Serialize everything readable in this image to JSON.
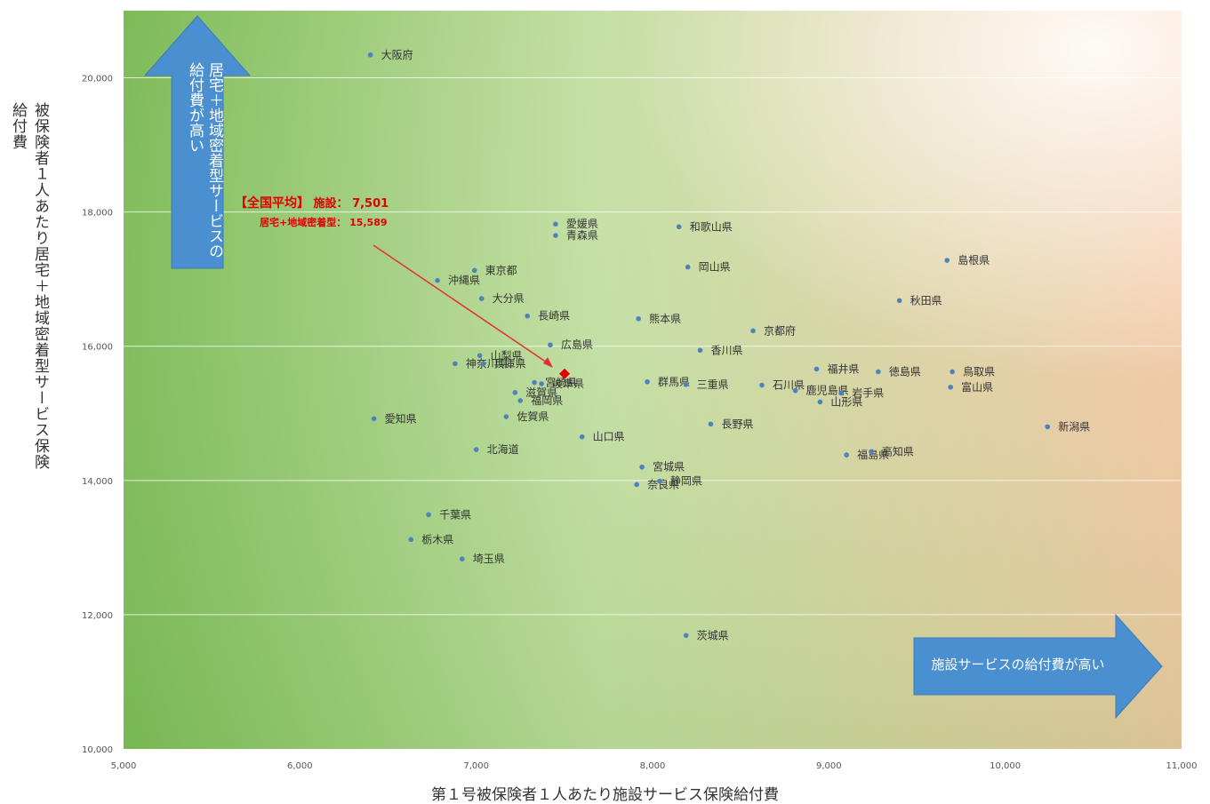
{
  "chart_data": {
    "type": "scatter",
    "title": "",
    "xlabel": "第１号被保険者１人あたり施設サービス保険給付費",
    "ylabel": "被保険者１人あたり居宅＋地域密着型サービス保険給付費",
    "xlim": [
      5000,
      11000
    ],
    "ylim": [
      10000,
      21000
    ],
    "xticks": [
      5000,
      6000,
      7000,
      8000,
      9000,
      10000,
      11000
    ],
    "xtick_labels": [
      "5,000",
      "6,000",
      "7,000",
      "8,000",
      "9,000",
      "10,000",
      "11,000"
    ],
    "yticks": [
      10000,
      12000,
      14000,
      16000,
      18000,
      20000
    ],
    "ytick_labels": [
      "10,000",
      "12,000",
      "14,000",
      "16,000",
      "18,000",
      "20,000"
    ],
    "grid": "horizontal",
    "points": [
      {
        "label": "大阪府",
        "x": 6400,
        "y": 20340
      },
      {
        "label": "愛媛県",
        "x": 7450,
        "y": 17820
      },
      {
        "label": "青森県",
        "x": 7450,
        "y": 17650
      },
      {
        "label": "和歌山県",
        "x": 8150,
        "y": 17780
      },
      {
        "label": "沖縄県",
        "x": 6780,
        "y": 16980
      },
      {
        "label": "東京都",
        "x": 6990,
        "y": 17130
      },
      {
        "label": "岡山県",
        "x": 8200,
        "y": 17180
      },
      {
        "label": "島根県",
        "x": 9670,
        "y": 17280
      },
      {
        "label": "大分県",
        "x": 7030,
        "y": 16710
      },
      {
        "label": "秋田県",
        "x": 9400,
        "y": 16680
      },
      {
        "label": "長崎県",
        "x": 7290,
        "y": 16450
      },
      {
        "label": "熊本県",
        "x": 7920,
        "y": 16410
      },
      {
        "label": "京都府",
        "x": 8570,
        "y": 16230
      },
      {
        "label": "山梨県",
        "x": 7020,
        "y": 15860
      },
      {
        "label": "広島県",
        "x": 7420,
        "y": 16020
      },
      {
        "label": "香川県",
        "x": 8270,
        "y": 15940
      },
      {
        "label": "神奈川県",
        "x": 6880,
        "y": 15740
      },
      {
        "label": "兵庫県",
        "x": 7040,
        "y": 15740
      },
      {
        "label": "群馬県",
        "x": 7970,
        "y": 15470
      },
      {
        "label": "三重県",
        "x": 8190,
        "y": 15430
      },
      {
        "label": "福井県",
        "x": 8930,
        "y": 15660
      },
      {
        "label": "徳島県",
        "x": 9280,
        "y": 15620
      },
      {
        "label": "鳥取県",
        "x": 9700,
        "y": 15620
      },
      {
        "label": "宮崎県",
        "x": 7330,
        "y": 15460
      },
      {
        "label": "岐阜県",
        "x": 7370,
        "y": 15440
      },
      {
        "label": "石川県",
        "x": 8620,
        "y": 15420
      },
      {
        "label": "鹿児島県",
        "x": 8810,
        "y": 15340
      },
      {
        "label": "岩手県",
        "x": 9070,
        "y": 15300
      },
      {
        "label": "富山県",
        "x": 9690,
        "y": 15390
      },
      {
        "label": "滋賀県",
        "x": 7220,
        "y": 15310
      },
      {
        "label": "福岡県",
        "x": 7250,
        "y": 15190
      },
      {
        "label": "山形県",
        "x": 8950,
        "y": 15170
      },
      {
        "label": "愛知県",
        "x": 6420,
        "y": 14920
      },
      {
        "label": "佐賀県",
        "x": 7170,
        "y": 14950
      },
      {
        "label": "長野県",
        "x": 8330,
        "y": 14840
      },
      {
        "label": "新潟県",
        "x": 10240,
        "y": 14800
      },
      {
        "label": "山口県",
        "x": 7600,
        "y": 14650
      },
      {
        "label": "北海道",
        "x": 7000,
        "y": 14460
      },
      {
        "label": "宮城県",
        "x": 7940,
        "y": 14200
      },
      {
        "label": "福島県",
        "x": 9100,
        "y": 14380
      },
      {
        "label": "高知県",
        "x": 9240,
        "y": 14430
      },
      {
        "label": "奈良県",
        "x": 7910,
        "y": 13940
      },
      {
        "label": "静岡県",
        "x": 8040,
        "y": 13990
      },
      {
        "label": "千葉県",
        "x": 6730,
        "y": 13490
      },
      {
        "label": "栃木県",
        "x": 6630,
        "y": 13120
      },
      {
        "label": "埼玉県",
        "x": 6920,
        "y": 12830
      },
      {
        "label": "茨城県",
        "x": 8190,
        "y": 11690
      }
    ],
    "national_average": {
      "x": 7501,
      "y": 15589,
      "heading": "【全国平均】",
      "facility_label": "施設：",
      "facility_value": "7,501",
      "home_label": "居宅+地域密着型：",
      "home_value": "15,589"
    },
    "annotations": {
      "up_arrow": "居宅＋地域密着型サービスの給付費が高い",
      "right_arrow": "施設サービスの給付費が高い"
    },
    "colors": {
      "marker": "#4f81bd",
      "average_marker": "#e00000",
      "arrow_fill": "#4a8fd0",
      "gradient_left": "#7dbb58",
      "gradient_mid": "#c5e0a5",
      "gradient_right": "#f7c9a8"
    }
  }
}
